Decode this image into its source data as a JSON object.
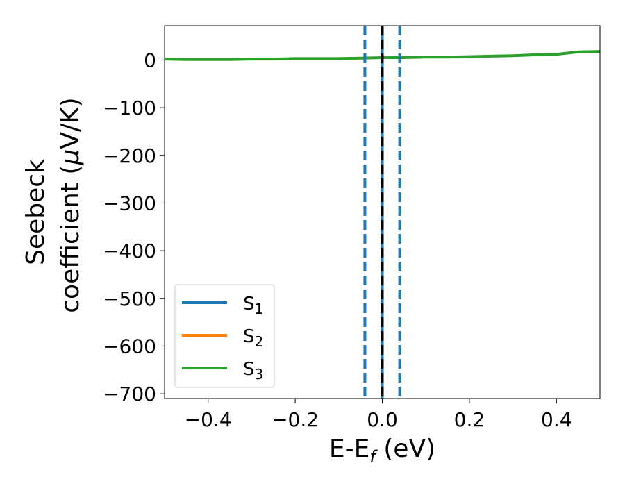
{
  "chart_data": {
    "type": "line",
    "xlabel": "E-E",
    "xlabel_sub": "f",
    "xlabel_unit": " (eV)",
    "ylabel_line1": "Seebeck",
    "ylabel_line2": "coefficient  (",
    "ylabel_mu": "μ",
    "ylabel_unit": "V/K)",
    "xlim": [
      -0.5,
      0.5
    ],
    "ylim": [
      -710,
      72
    ],
    "xticks": [
      -0.4,
      -0.2,
      0.0,
      0.2,
      0.4
    ],
    "xtick_labels": [
      "−0.4",
      "−0.2",
      "0.0",
      "0.2",
      "0.4"
    ],
    "yticks": [
      0,
      -100,
      -200,
      -300,
      -400,
      -500,
      -600,
      -700
    ],
    "ytick_labels": [
      "0",
      "−100",
      "−200",
      "−300",
      "−400",
      "−500",
      "−600",
      "−700"
    ],
    "legend_position": "lower-left",
    "series": [
      {
        "name": "S",
        "sub": "1",
        "color": "#1f77b4",
        "x": [],
        "y": []
      },
      {
        "name": "S",
        "sub": "2",
        "color": "#ff7f0e",
        "x": [],
        "y": []
      },
      {
        "name": "S",
        "sub": "3",
        "color": "#2ca02c",
        "x": [
          -0.5,
          -0.45,
          -0.4,
          -0.35,
          -0.3,
          -0.25,
          -0.2,
          -0.15,
          -0.1,
          -0.05,
          0.0,
          0.05,
          0.1,
          0.15,
          0.2,
          0.25,
          0.3,
          0.35,
          0.4,
          0.45,
          0.5
        ],
        "y": [
          2,
          1,
          1,
          1,
          2,
          2,
          3,
          3,
          3,
          4,
          5,
          5,
          6,
          6,
          7,
          8,
          9,
          11,
          12,
          17,
          18
        ]
      }
    ],
    "vertical_lines": [
      {
        "x": -0.04,
        "style": "dashed",
        "color": "#1f77b4"
      },
      {
        "x": 0.04,
        "style": "dashed",
        "color": "#1f77b4"
      },
      {
        "x": 0.0,
        "style": "solid",
        "color": "#1f77b4"
      },
      {
        "x": 0.0,
        "style": "dashed",
        "color": "#000000"
      }
    ]
  }
}
